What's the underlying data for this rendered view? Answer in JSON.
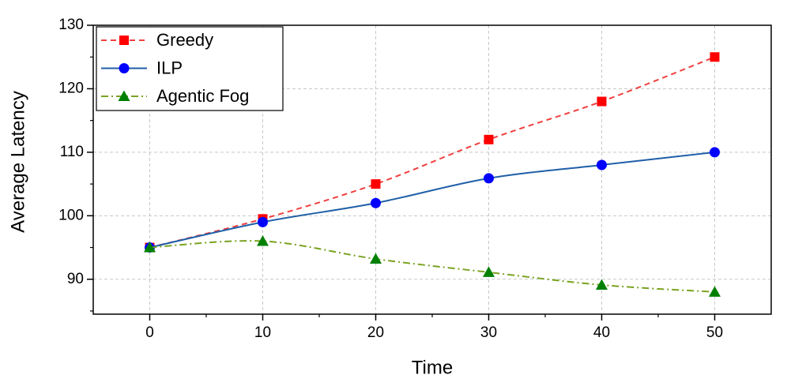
{
  "chart_data": {
    "type": "line",
    "x_label": "Time",
    "y_label": "Average Latency",
    "x": [
      0,
      10,
      20,
      30,
      40,
      50
    ],
    "series": [
      {
        "name": "Greedy",
        "color": "#ff0000",
        "line_color": "#f04040",
        "dash": "dashed",
        "marker": "square",
        "values": [
          95,
          99.5,
          105,
          112,
          118,
          125
        ]
      },
      {
        "name": "ILP",
        "color": "#0000ff",
        "line_color": "#1f5fa8",
        "dash": "solid",
        "marker": "circle",
        "values": [
          95,
          99,
          102,
          105.9,
          108,
          110
        ]
      },
      {
        "name": "Agentic Fog",
        "color": "#008000",
        "line_color": "#7aa320",
        "dash": "dashdot",
        "marker": "triangle",
        "values": [
          95,
          96,
          93.2,
          91.1,
          89.1,
          88
        ]
      }
    ],
    "xlim": [
      -5,
      55
    ],
    "ylim": [
      84.5,
      130
    ],
    "xticks": [
      0,
      10,
      20,
      30,
      40,
      50
    ],
    "yticks": [
      90,
      100,
      110,
      120,
      130
    ],
    "grid": true,
    "legend": "upper left"
  }
}
